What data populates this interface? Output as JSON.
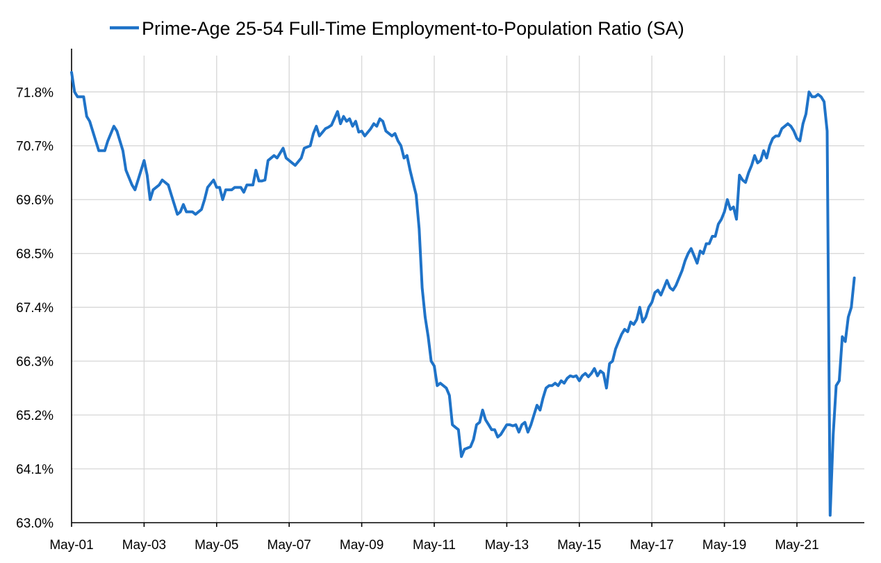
{
  "chart_data": {
    "type": "line",
    "title": "",
    "xlabel": "",
    "ylabel": "",
    "legend_position": "top-center",
    "grid": true,
    "colors": {
      "series": "#1f73c8",
      "grid": "#d9d9d9",
      "axis": "#000000"
    },
    "x_ticks": [
      "May-01",
      "May-03",
      "May-05",
      "May-07",
      "May-09",
      "May-11",
      "May-13",
      "May-15",
      "May-17",
      "May-19",
      "May-21"
    ],
    "y_ticks": [
      "63.0%",
      "64.1%",
      "65.2%",
      "66.3%",
      "67.4%",
      "68.5%",
      "69.6%",
      "70.7%",
      "71.8%"
    ],
    "ylim": [
      63.0,
      72.4
    ],
    "x_range": [
      "2001-05",
      "2022-12"
    ],
    "series": [
      {
        "name": "Prime-Age 25-54 Full-Time Employment-to-Population Ratio (SA)",
        "points": [
          [
            "2001-05",
            72.2
          ],
          [
            "2001-06",
            71.8
          ],
          [
            "2001-07",
            71.7
          ],
          [
            "2001-09",
            71.7
          ],
          [
            "2001-10",
            71.3
          ],
          [
            "2001-11",
            71.2
          ],
          [
            "2002-01",
            70.8
          ],
          [
            "2002-02",
            70.6
          ],
          [
            "2002-04",
            70.6
          ],
          [
            "2002-05",
            70.8
          ],
          [
            "2002-07",
            71.1
          ],
          [
            "2002-08",
            71.0
          ],
          [
            "2002-10",
            70.6
          ],
          [
            "2002-11",
            70.2
          ],
          [
            "2003-01",
            69.9
          ],
          [
            "2003-02",
            69.8
          ],
          [
            "2003-04",
            70.2
          ],
          [
            "2003-05",
            70.4
          ],
          [
            "2003-06",
            70.1
          ],
          [
            "2003-07",
            69.6
          ],
          [
            "2003-08",
            69.8
          ],
          [
            "2003-10",
            69.9
          ],
          [
            "2003-11",
            70.0
          ],
          [
            "2004-01",
            69.9
          ],
          [
            "2004-02",
            69.7
          ],
          [
            "2004-04",
            69.3
          ],
          [
            "2004-05",
            69.35
          ],
          [
            "2004-06",
            69.5
          ],
          [
            "2004-07",
            69.35
          ],
          [
            "2004-09",
            69.35
          ],
          [
            "2004-10",
            69.3
          ],
          [
            "2004-12",
            69.4
          ],
          [
            "2005-01",
            69.6
          ],
          [
            "2005-02",
            69.85
          ],
          [
            "2005-04",
            70.0
          ],
          [
            "2005-05",
            69.85
          ],
          [
            "2005-06",
            69.85
          ],
          [
            "2005-07",
            69.6
          ],
          [
            "2005-08",
            69.8
          ],
          [
            "2005-10",
            69.8
          ],
          [
            "2005-11",
            69.85
          ],
          [
            "2006-01",
            69.85
          ],
          [
            "2006-02",
            69.75
          ],
          [
            "2006-03",
            69.9
          ],
          [
            "2006-05",
            69.9
          ],
          [
            "2006-06",
            70.2
          ],
          [
            "2006-07",
            69.98
          ],
          [
            "2006-08",
            69.98
          ],
          [
            "2006-09",
            70.0
          ],
          [
            "2006-10",
            70.4
          ],
          [
            "2006-12",
            70.5
          ],
          [
            "2007-01",
            70.45
          ],
          [
            "2007-02",
            70.55
          ],
          [
            "2007-03",
            70.65
          ],
          [
            "2007-04",
            70.45
          ],
          [
            "2007-06",
            70.35
          ],
          [
            "2007-07",
            70.3
          ],
          [
            "2007-09",
            70.45
          ],
          [
            "2007-10",
            70.65
          ],
          [
            "2007-12",
            70.7
          ],
          [
            "2008-01",
            70.95
          ],
          [
            "2008-02",
            71.1
          ],
          [
            "2008-03",
            70.9
          ],
          [
            "2008-05",
            71.05
          ],
          [
            "2008-06",
            71.08
          ],
          [
            "2008-07",
            71.12
          ],
          [
            "2008-09",
            71.4
          ],
          [
            "2008-10",
            71.15
          ],
          [
            "2008-11",
            71.3
          ],
          [
            "2008-12",
            71.2
          ],
          [
            "2009-01",
            71.25
          ],
          [
            "2009-02",
            71.1
          ],
          [
            "2009-03",
            71.2
          ],
          [
            "2009-04",
            70.98
          ],
          [
            "2009-05",
            71.0
          ],
          [
            "2009-06",
            70.9
          ],
          [
            "2009-08",
            71.05
          ],
          [
            "2009-09",
            71.15
          ],
          [
            "2009-10",
            71.1
          ],
          [
            "2009-11",
            71.25
          ],
          [
            "2009-12",
            71.2
          ],
          [
            "2010-01",
            71.0
          ],
          [
            "2010-02",
            70.95
          ],
          [
            "2010-03",
            70.9
          ],
          [
            "2010-04",
            70.95
          ],
          [
            "2010-05",
            70.8
          ],
          [
            "2010-06",
            70.7
          ],
          [
            "2010-07",
            70.45
          ],
          [
            "2010-08",
            70.5
          ],
          [
            "2010-09",
            70.2
          ],
          [
            "2010-10",
            69.95
          ],
          [
            "2010-11",
            69.7
          ],
          [
            "2010-12",
            69.0
          ],
          [
            "2011-01",
            67.8
          ],
          [
            "2011-02",
            67.2
          ],
          [
            "2011-03",
            66.8
          ],
          [
            "2011-04",
            66.3
          ],
          [
            "2011-05",
            66.2
          ],
          [
            "2011-06",
            65.8
          ],
          [
            "2011-07",
            65.85
          ],
          [
            "2011-09",
            65.75
          ],
          [
            "2011-10",
            65.6
          ],
          [
            "2011-11",
            65.0
          ],
          [
            "2011-12",
            64.95
          ],
          [
            "2012-01",
            64.9
          ],
          [
            "2012-02",
            64.35
          ],
          [
            "2012-03",
            64.5
          ],
          [
            "2012-05",
            64.55
          ],
          [
            "2012-06",
            64.7
          ],
          [
            "2012-07",
            65.0
          ],
          [
            "2012-08",
            65.05
          ],
          [
            "2012-09",
            65.3
          ],
          [
            "2012-10",
            65.1
          ],
          [
            "2012-11",
            65.0
          ],
          [
            "2012-12",
            64.9
          ],
          [
            "2013-01",
            64.9
          ],
          [
            "2013-02",
            64.75
          ],
          [
            "2013-03",
            64.8
          ],
          [
            "2013-04",
            64.9
          ],
          [
            "2013-05",
            65.0
          ],
          [
            "2013-06",
            65.0
          ],
          [
            "2013-07",
            64.98
          ],
          [
            "2013-08",
            65.0
          ],
          [
            "2013-09",
            64.85
          ],
          [
            "2013-10",
            65.0
          ],
          [
            "2013-11",
            65.05
          ],
          [
            "2013-12",
            64.85
          ],
          [
            "2014-01",
            65.0
          ],
          [
            "2014-02",
            65.2
          ],
          [
            "2014-03",
            65.4
          ],
          [
            "2014-04",
            65.3
          ],
          [
            "2014-05",
            65.55
          ],
          [
            "2014-06",
            65.75
          ],
          [
            "2014-07",
            65.8
          ],
          [
            "2014-08",
            65.8
          ],
          [
            "2014-09",
            65.85
          ],
          [
            "2014-10",
            65.8
          ],
          [
            "2014-11",
            65.9
          ],
          [
            "2014-12",
            65.85
          ],
          [
            "2015-01",
            65.95
          ],
          [
            "2015-02",
            66.0
          ],
          [
            "2015-03",
            65.98
          ],
          [
            "2015-04",
            66.0
          ],
          [
            "2015-05",
            65.9
          ],
          [
            "2015-06",
            66.0
          ],
          [
            "2015-07",
            66.05
          ],
          [
            "2015-08",
            65.98
          ],
          [
            "2015-09",
            66.05
          ],
          [
            "2015-10",
            66.15
          ],
          [
            "2015-11",
            66.0
          ],
          [
            "2015-12",
            66.1
          ],
          [
            "2016-01",
            66.05
          ],
          [
            "2016-02",
            65.75
          ],
          [
            "2016-03",
            66.25
          ],
          [
            "2016-04",
            66.3
          ],
          [
            "2016-05",
            66.55
          ],
          [
            "2016-06",
            66.7
          ],
          [
            "2016-07",
            66.85
          ],
          [
            "2016-08",
            66.95
          ],
          [
            "2016-09",
            66.9
          ],
          [
            "2016-10",
            67.1
          ],
          [
            "2016-11",
            67.05
          ],
          [
            "2016-12",
            67.15
          ],
          [
            "2017-01",
            67.4
          ],
          [
            "2017-02",
            67.1
          ],
          [
            "2017-03",
            67.2
          ],
          [
            "2017-04",
            67.4
          ],
          [
            "2017-05",
            67.5
          ],
          [
            "2017-06",
            67.7
          ],
          [
            "2017-07",
            67.75
          ],
          [
            "2017-08",
            67.65
          ],
          [
            "2017-09",
            67.8
          ],
          [
            "2017-10",
            67.95
          ],
          [
            "2017-11",
            67.8
          ],
          [
            "2017-12",
            67.75
          ],
          [
            "2018-01",
            67.85
          ],
          [
            "2018-02",
            68.0
          ],
          [
            "2018-03",
            68.15
          ],
          [
            "2018-04",
            68.35
          ],
          [
            "2018-05",
            68.5
          ],
          [
            "2018-06",
            68.6
          ],
          [
            "2018-07",
            68.45
          ],
          [
            "2018-08",
            68.3
          ],
          [
            "2018-09",
            68.55
          ],
          [
            "2018-10",
            68.5
          ],
          [
            "2018-11",
            68.7
          ],
          [
            "2018-12",
            68.7
          ],
          [
            "2019-01",
            68.85
          ],
          [
            "2019-02",
            68.85
          ],
          [
            "2019-03",
            69.1
          ],
          [
            "2019-04",
            69.2
          ],
          [
            "2019-05",
            69.35
          ],
          [
            "2019-06",
            69.6
          ],
          [
            "2019-07",
            69.4
          ],
          [
            "2019-08",
            69.45
          ],
          [
            "2019-09",
            69.2
          ],
          [
            "2019-10",
            70.1
          ],
          [
            "2019-11",
            70.0
          ],
          [
            "2019-12",
            69.95
          ],
          [
            "2020-01",
            70.15
          ],
          [
            "2020-02",
            70.3
          ],
          [
            "2020-03",
            70.5
          ],
          [
            "2020-04",
            70.35
          ],
          [
            "2020-05",
            70.4
          ],
          [
            "2020-06",
            70.6
          ],
          [
            "2020-07",
            70.45
          ],
          [
            "2020-08",
            70.7
          ],
          [
            "2020-09",
            70.85
          ],
          [
            "2020-10",
            70.9
          ],
          [
            "2020-11",
            70.9
          ],
          [
            "2020-12",
            71.05
          ],
          [
            "2021-01",
            71.1
          ],
          [
            "2021-02",
            71.15
          ],
          [
            "2021-03",
            71.1
          ],
          [
            "2021-04",
            71.0
          ],
          [
            "2021-05",
            70.85
          ],
          [
            "2021-06",
            70.8
          ],
          [
            "2021-07",
            71.15
          ],
          [
            "2021-08",
            71.35
          ],
          [
            "2021-09",
            71.8
          ],
          [
            "2021-10",
            71.7
          ],
          [
            "2021-11",
            71.7
          ],
          [
            "2021-12",
            71.75
          ],
          [
            "2022-01",
            71.7
          ],
          [
            "2022-02",
            71.6
          ],
          [
            "2022-03",
            71.0
          ],
          [
            "2022-04",
            63.15
          ],
          [
            "2022-05",
            64.8
          ],
          [
            "2022-06",
            65.8
          ],
          [
            "2022-07",
            65.9
          ],
          [
            "2022-08",
            66.8
          ],
          [
            "2022-09",
            66.7
          ],
          [
            "2022-10",
            67.2
          ],
          [
            "2022-11",
            67.4
          ],
          [
            "2022-12",
            68.0
          ]
        ]
      }
    ]
  }
}
